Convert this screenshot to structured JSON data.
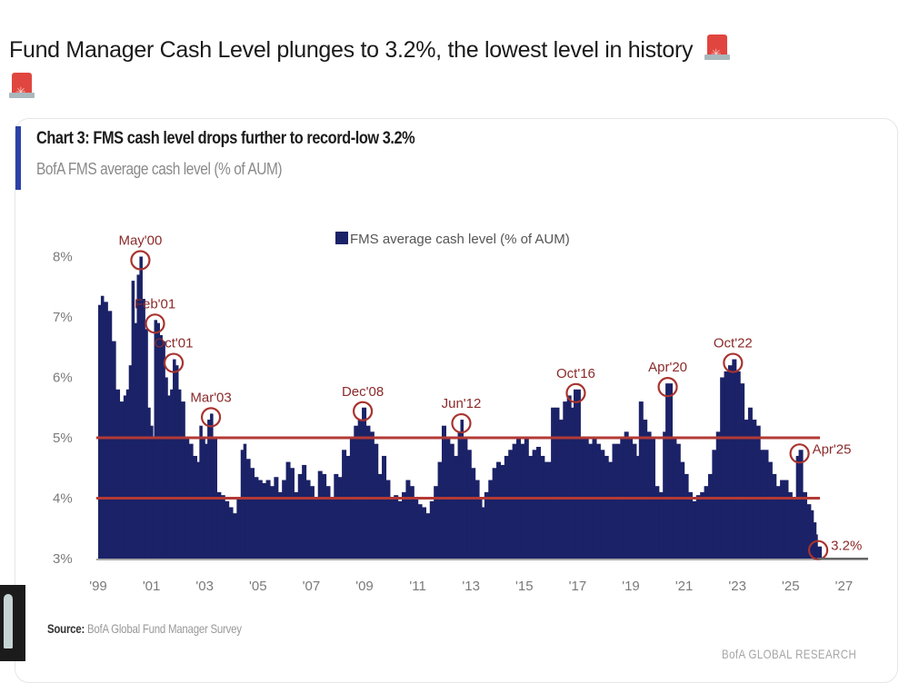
{
  "post": {
    "headline": "Fund Manager Cash Level plunges to 3.2%, the lowest level in history",
    "emoji_icons": [
      "police-light-icon",
      "police-light-icon"
    ]
  },
  "card": {
    "title": "Chart 3: FMS cash level drops further to record-low 3.2%",
    "subtitle": "BofA FMS average cash level (% of AUM)",
    "source_label": "Source:",
    "source_text": "BofA Global Fund Manager Survey",
    "brand": "BofA GLOBAL RESEARCH"
  },
  "chart_data": {
    "type": "bar",
    "title": "Chart 3: FMS cash level drops further to record-low 3.2%",
    "subtitle": "BofA FMS average cash level (% of AUM)",
    "xlabel": "",
    "ylabel": "",
    "ylim": [
      3,
      8
    ],
    "xlim": [
      1999,
      2027.2
    ],
    "y_ticks": [
      "8%",
      "7%",
      "6%",
      "5%",
      "4%",
      "3%"
    ],
    "y_tick_values": [
      8,
      7,
      6,
      5,
      4,
      3
    ],
    "x_ticks": [
      "'99",
      "'01",
      "'03",
      "'05",
      "'07",
      "'09",
      "'11",
      "'13",
      "'15",
      "'17",
      "'19",
      "'21",
      "'23",
      "'25",
      "'27"
    ],
    "x_tick_values": [
      1999,
      2001,
      2003,
      2005,
      2007,
      2009,
      2011,
      2013,
      2015,
      2017,
      2019,
      2021,
      2023,
      2025,
      2027
    ],
    "legend": {
      "entries": [
        "FMS average cash level (% of AUM)"
      ],
      "position": "top-center"
    },
    "color": "#1b2267",
    "reference_lines": [
      {
        "y": 5.0,
        "color": "#b33a36"
      },
      {
        "y": 4.0,
        "color": "#b33a36"
      }
    ],
    "series": [
      {
        "name": "FMS average cash level (% of AUM)",
        "points": [
          [
            1999.0,
            7.2
          ],
          [
            1999.1,
            7.35
          ],
          [
            1999.2,
            7.25
          ],
          [
            1999.35,
            7.1
          ],
          [
            1999.5,
            6.6
          ],
          [
            1999.65,
            5.8
          ],
          [
            1999.8,
            5.6
          ],
          [
            1999.95,
            5.7
          ],
          [
            2000.05,
            5.8
          ],
          [
            2000.15,
            6.2
          ],
          [
            2000.25,
            7.6
          ],
          [
            2000.35,
            6.9
          ],
          [
            2000.45,
            7.7
          ],
          [
            2000.55,
            8.0
          ],
          [
            2000.65,
            7.3
          ],
          [
            2000.75,
            6.8
          ],
          [
            2000.85,
            5.5
          ],
          [
            2000.95,
            5.2
          ],
          [
            2001.05,
            5.0
          ],
          [
            2001.1,
            6.95
          ],
          [
            2001.2,
            6.9
          ],
          [
            2001.3,
            6.7
          ],
          [
            2001.4,
            6.6
          ],
          [
            2001.5,
            6.0
          ],
          [
            2001.6,
            5.7
          ],
          [
            2001.7,
            5.8
          ],
          [
            2001.8,
            6.3
          ],
          [
            2001.9,
            6.2
          ],
          [
            2002.0,
            5.8
          ],
          [
            2002.1,
            5.6
          ],
          [
            2002.25,
            5.0
          ],
          [
            2002.4,
            4.9
          ],
          [
            2002.55,
            4.7
          ],
          [
            2002.7,
            4.6
          ],
          [
            2002.8,
            5.2
          ],
          [
            2002.9,
            5.0
          ],
          [
            2003.0,
            4.9
          ],
          [
            2003.1,
            5.3
          ],
          [
            2003.2,
            5.4
          ],
          [
            2003.3,
            5.0
          ],
          [
            2003.45,
            4.1
          ],
          [
            2003.6,
            4.05
          ],
          [
            2003.75,
            3.95
          ],
          [
            2003.9,
            3.85
          ],
          [
            2004.05,
            3.75
          ],
          [
            2004.2,
            4.0
          ],
          [
            2004.35,
            4.8
          ],
          [
            2004.45,
            4.9
          ],
          [
            2004.55,
            4.65
          ],
          [
            2004.7,
            4.5
          ],
          [
            2004.85,
            4.35
          ],
          [
            2005.0,
            4.3
          ],
          [
            2005.15,
            4.25
          ],
          [
            2005.3,
            4.3
          ],
          [
            2005.45,
            4.2
          ],
          [
            2005.6,
            4.35
          ],
          [
            2005.75,
            4.1
          ],
          [
            2005.9,
            4.3
          ],
          [
            2006.05,
            4.6
          ],
          [
            2006.2,
            4.5
          ],
          [
            2006.35,
            4.1
          ],
          [
            2006.5,
            4.4
          ],
          [
            2006.65,
            4.55
          ],
          [
            2006.8,
            4.3
          ],
          [
            2006.95,
            4.2
          ],
          [
            2007.1,
            4.0
          ],
          [
            2007.25,
            4.45
          ],
          [
            2007.4,
            4.4
          ],
          [
            2007.55,
            4.2
          ],
          [
            2007.7,
            4.0
          ],
          [
            2007.85,
            4.4
          ],
          [
            2008.0,
            4.35
          ],
          [
            2008.15,
            4.8
          ],
          [
            2008.3,
            4.7
          ],
          [
            2008.45,
            5.0
          ],
          [
            2008.6,
            5.2
          ],
          [
            2008.75,
            5.3
          ],
          [
            2008.9,
            5.5
          ],
          [
            2009.05,
            5.2
          ],
          [
            2009.2,
            5.1
          ],
          [
            2009.35,
            4.9
          ],
          [
            2009.5,
            4.4
          ],
          [
            2009.65,
            4.7
          ],
          [
            2009.8,
            4.3
          ],
          [
            2009.95,
            4.0
          ],
          [
            2010.1,
            4.05
          ],
          [
            2010.25,
            3.95
          ],
          [
            2010.4,
            4.1
          ],
          [
            2010.55,
            4.3
          ],
          [
            2010.7,
            4.2
          ],
          [
            2010.85,
            4.0
          ],
          [
            2011.0,
            3.9
          ],
          [
            2011.15,
            3.85
          ],
          [
            2011.3,
            3.75
          ],
          [
            2011.45,
            3.95
          ],
          [
            2011.6,
            4.2
          ],
          [
            2011.75,
            4.6
          ],
          [
            2011.9,
            5.2
          ],
          [
            2012.05,
            5.0
          ],
          [
            2012.2,
            4.9
          ],
          [
            2012.35,
            4.7
          ],
          [
            2012.5,
            5.1
          ],
          [
            2012.6,
            5.3
          ],
          [
            2012.7,
            5.0
          ],
          [
            2012.85,
            4.8
          ],
          [
            2013.0,
            4.5
          ],
          [
            2013.15,
            4.3
          ],
          [
            2013.3,
            4.0
          ],
          [
            2013.4,
            3.85
          ],
          [
            2013.5,
            4.1
          ],
          [
            2013.65,
            4.3
          ],
          [
            2013.8,
            4.5
          ],
          [
            2013.95,
            4.6
          ],
          [
            2014.1,
            4.55
          ],
          [
            2014.25,
            4.7
          ],
          [
            2014.4,
            4.8
          ],
          [
            2014.55,
            4.9
          ],
          [
            2014.7,
            5.0
          ],
          [
            2014.85,
            4.9
          ],
          [
            2015.0,
            5.0
          ],
          [
            2015.15,
            4.7
          ],
          [
            2015.3,
            4.8
          ],
          [
            2015.45,
            4.85
          ],
          [
            2015.6,
            4.7
          ],
          [
            2015.75,
            4.6
          ],
          [
            2015.9,
            4.6
          ],
          [
            2016.0,
            5.5
          ],
          [
            2016.15,
            5.5
          ],
          [
            2016.3,
            5.3
          ],
          [
            2016.45,
            5.6
          ],
          [
            2016.6,
            5.7
          ],
          [
            2016.75,
            5.5
          ],
          [
            2016.85,
            5.8
          ],
          [
            2016.95,
            5.8
          ],
          [
            2017.1,
            5.0
          ],
          [
            2017.25,
            5.0
          ],
          [
            2017.4,
            4.9
          ],
          [
            2017.55,
            5.0
          ],
          [
            2017.7,
            4.9
          ],
          [
            2017.85,
            4.8
          ],
          [
            2018.0,
            4.7
          ],
          [
            2018.15,
            4.6
          ],
          [
            2018.3,
            4.9
          ],
          [
            2018.45,
            4.9
          ],
          [
            2018.6,
            5.0
          ],
          [
            2018.75,
            5.1
          ],
          [
            2018.9,
            5.0
          ],
          [
            2019.05,
            4.9
          ],
          [
            2019.2,
            4.7
          ],
          [
            2019.3,
            5.6
          ],
          [
            2019.45,
            5.3
          ],
          [
            2019.6,
            5.1
          ],
          [
            2019.75,
            5.0
          ],
          [
            2019.9,
            4.2
          ],
          [
            2020.05,
            4.1
          ],
          [
            2020.2,
            5.1
          ],
          [
            2020.3,
            5.9
          ],
          [
            2020.4,
            5.9
          ],
          [
            2020.55,
            5.0
          ],
          [
            2020.7,
            4.9
          ],
          [
            2020.85,
            4.6
          ],
          [
            2021.0,
            4.4
          ],
          [
            2021.15,
            4.1
          ],
          [
            2021.3,
            3.95
          ],
          [
            2021.45,
            4.05
          ],
          [
            2021.6,
            4.1
          ],
          [
            2021.75,
            4.2
          ],
          [
            2021.9,
            4.4
          ],
          [
            2022.05,
            4.8
          ],
          [
            2022.2,
            5.1
          ],
          [
            2022.35,
            6.0
          ],
          [
            2022.5,
            6.1
          ],
          [
            2022.65,
            6.2
          ],
          [
            2022.8,
            6.3
          ],
          [
            2022.95,
            6.1
          ],
          [
            2023.1,
            5.9
          ],
          [
            2023.25,
            5.3
          ],
          [
            2023.4,
            5.5
          ],
          [
            2023.55,
            5.3
          ],
          [
            2023.7,
            5.2
          ],
          [
            2023.85,
            4.8
          ],
          [
            2024.0,
            4.8
          ],
          [
            2024.15,
            4.6
          ],
          [
            2024.3,
            4.4
          ],
          [
            2024.45,
            4.2
          ],
          [
            2024.6,
            4.3
          ],
          [
            2024.75,
            4.3
          ],
          [
            2024.9,
            4.1
          ],
          [
            2025.05,
            4.0
          ],
          [
            2025.2,
            4.7
          ],
          [
            2025.3,
            4.8
          ],
          [
            2025.45,
            4.1
          ],
          [
            2025.6,
            3.9
          ],
          [
            2025.75,
            3.8
          ],
          [
            2025.85,
            3.6
          ],
          [
            2025.95,
            3.4
          ],
          [
            2026.0,
            3.2
          ]
        ]
      }
    ],
    "annotations": [
      {
        "label": "May'00",
        "x": 2000.55,
        "y": 8.0,
        "label_pos": "above"
      },
      {
        "label": "Feb'01",
        "x": 2001.1,
        "y": 6.95,
        "label_pos": "above"
      },
      {
        "label": "Oct'01",
        "x": 2001.8,
        "y": 6.3,
        "label_pos": "above"
      },
      {
        "label": "Mar'03",
        "x": 2003.2,
        "y": 5.4,
        "label_pos": "above"
      },
      {
        "label": "Dec'08",
        "x": 2008.9,
        "y": 5.5,
        "label_pos": "above"
      },
      {
        "label": "Jun'12",
        "x": 2012.6,
        "y": 5.3,
        "label_pos": "above"
      },
      {
        "label": "Oct'16",
        "x": 2016.9,
        "y": 5.8,
        "label_pos": "above"
      },
      {
        "label": "Apr'20",
        "x": 2020.35,
        "y": 5.9,
        "label_pos": "above"
      },
      {
        "label": "Oct'22",
        "x": 2022.8,
        "y": 6.3,
        "label_pos": "above"
      },
      {
        "label": "Apr'25",
        "x": 2025.3,
        "y": 4.8,
        "label_pos": "right"
      },
      {
        "label": "3.2%",
        "x": 2026.0,
        "y": 3.2,
        "label_pos": "right"
      }
    ]
  }
}
